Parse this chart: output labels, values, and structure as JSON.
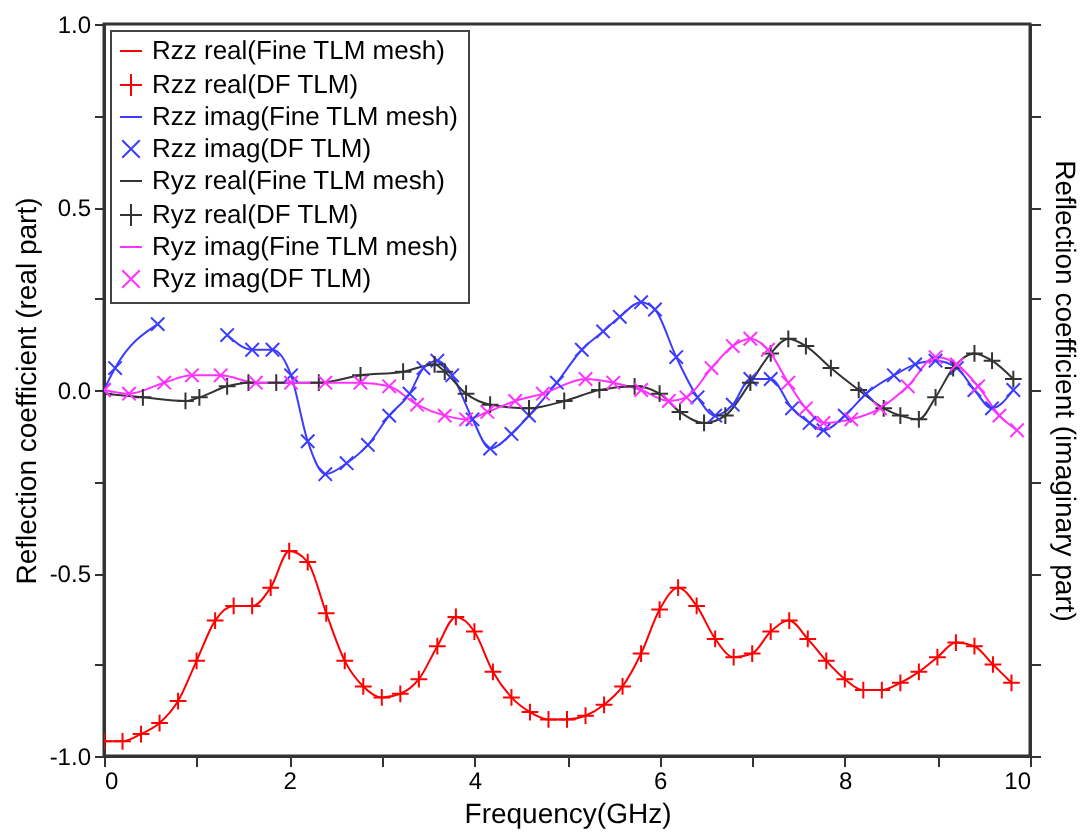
{
  "chart_data": {
    "type": "line",
    "xlabel": "Frequency(GHz)",
    "ylabel": "Reflection coefficient (real part)",
    "y2label": "Reflection coefficient (imaginary part)",
    "xlim": [
      0,
      10
    ],
    "xticks": [
      0,
      {
        "value": 1,
        "label": null
      },
      2,
      {
        "value": 3,
        "label": null
      },
      4,
      {
        "value": 5,
        "label": null
      },
      6,
      {
        "value": 7,
        "label": null
      },
      8,
      {
        "value": 9,
        "label": null
      },
      10
    ],
    "ylim": [
      -1,
      1
    ],
    "yticks": [
      {
        "value": -1,
        "label": "-1.0"
      },
      {
        "value": -0.75,
        "label": null
      },
      {
        "value": -0.5,
        "label": "-0.5"
      },
      {
        "value": -0.25,
        "label": null
      },
      {
        "value": 0,
        "label": "0.0"
      },
      {
        "value": 0.25,
        "label": null
      },
      {
        "value": 0.5,
        "label": "0.5"
      },
      {
        "value": 0.75,
        "label": null
      },
      {
        "value": 1,
        "label": "1.0"
      }
    ],
    "legend": "top left",
    "series": [
      {
        "name": "Rzz real(Fine TLM mesh)",
        "type": "line",
        "marker": "none",
        "color": "#ff0000",
        "x": [
          0,
          0.2,
          0.4,
          0.6,
          0.8,
          1,
          1.2,
          1.4,
          1.6,
          1.8,
          2,
          2.2,
          2.4,
          2.6,
          2.8,
          3,
          3.2,
          3.4,
          3.6,
          3.8,
          4,
          4.2,
          4.4,
          4.6,
          4.8,
          5,
          5.2,
          5.4,
          5.6,
          5.8,
          6,
          6.2,
          6.4,
          6.6,
          6.8,
          7,
          7.2,
          7.4,
          7.6,
          7.8,
          8,
          8.2,
          8.4,
          8.6,
          8.8,
          9,
          9.2,
          9.4,
          9.6,
          9.8
        ],
        "values": [
          -0.96,
          -0.96,
          -0.94,
          -0.91,
          -0.85,
          -0.74,
          -0.63,
          -0.59,
          -0.59,
          -0.54,
          -0.44,
          -0.47,
          -0.61,
          -0.74,
          -0.81,
          -0.84,
          -0.83,
          -0.79,
          -0.7,
          -0.62,
          -0.66,
          -0.77,
          -0.84,
          -0.88,
          -0.9,
          -0.9,
          -0.89,
          -0.86,
          -0.81,
          -0.72,
          -0.6,
          -0.54,
          -0.59,
          -0.68,
          -0.73,
          -0.72,
          -0.66,
          -0.63,
          -0.68,
          -0.74,
          -0.79,
          -0.82,
          -0.82,
          -0.8,
          -0.77,
          -0.73,
          -0.69,
          -0.7,
          -0.75,
          -0.8
        ]
      },
      {
        "name": "Rzz real(DF TLM)",
        "type": "scatter",
        "marker": "cross",
        "color": "#ff0000",
        "x": [
          0,
          0.2,
          0.4,
          0.6,
          0.8,
          1,
          1.2,
          1.4,
          1.6,
          1.8,
          2,
          2.2,
          2.4,
          2.6,
          2.8,
          3,
          3.2,
          3.4,
          3.6,
          3.8,
          4,
          4.2,
          4.4,
          4.6,
          4.8,
          5,
          5.2,
          5.4,
          5.6,
          5.8,
          6,
          6.2,
          6.4,
          6.6,
          6.8,
          7,
          7.2,
          7.4,
          7.6,
          7.8,
          8,
          8.2,
          8.4,
          8.6,
          8.8,
          9,
          9.2,
          9.4,
          9.6,
          9.8
        ],
        "values": [
          -0.96,
          -0.96,
          -0.94,
          -0.91,
          -0.85,
          -0.74,
          -0.63,
          -0.59,
          -0.59,
          -0.54,
          -0.44,
          -0.47,
          -0.61,
          -0.74,
          -0.81,
          -0.84,
          -0.83,
          -0.79,
          -0.7,
          -0.62,
          -0.66,
          -0.77,
          -0.84,
          -0.88,
          -0.9,
          -0.9,
          -0.89,
          -0.86,
          -0.81,
          -0.72,
          -0.6,
          -0.54,
          -0.59,
          -0.68,
          -0.73,
          -0.72,
          -0.66,
          -0.63,
          -0.68,
          -0.74,
          -0.79,
          -0.82,
          -0.82,
          -0.8,
          -0.77,
          -0.73,
          -0.69,
          -0.7,
          -0.75,
          -0.8
        ]
      },
      {
        "name": "Rzz imag(Fine TLM mesh)",
        "type": "line",
        "marker": "none",
        "color": "#3c3cff",
        "x": [
          0,
          0.12,
          0.58,
          0.9,
          1.33,
          1.6,
          1.82,
          2.02,
          2.2,
          2.39,
          2.62,
          2.85,
          3.08,
          3.3,
          3.45,
          3.6,
          3.76,
          3.98,
          4.17,
          4.4,
          4.59,
          4.89,
          5.16,
          5.39,
          5.57,
          5.8,
          5.95,
          6.18,
          6.41,
          6.6,
          6.79,
          6.98,
          7.2,
          7.43,
          7.62,
          7.77,
          8,
          8.23,
          8.53,
          8.76,
          8.98,
          9.21,
          9.4,
          9.59,
          9.82
        ],
        "values": [
          0,
          0.06,
          0.18,
          null,
          0.15,
          0.11,
          0.11,
          0.04,
          -0.14,
          -0.23,
          -0.2,
          -0.15,
          -0.07,
          -0.01,
          0.06,
          0.08,
          0.04,
          -0.08,
          -0.16,
          -0.12,
          -0.07,
          0.02,
          0.11,
          0.16,
          0.2,
          0.24,
          0.22,
          0.09,
          -0.02,
          -0.07,
          -0.04,
          0.03,
          0.03,
          -0.05,
          -0.09,
          -0.11,
          -0.07,
          -0.01,
          0.04,
          0.07,
          0.08,
          0.06,
          0,
          -0.05,
          0
        ]
      },
      {
        "name": "Rzz imag(DF TLM)",
        "type": "scatter",
        "marker": "x",
        "color": "#3c3cff",
        "x": [
          0,
          0.12,
          0.58,
          0.9,
          1.33,
          1.6,
          1.82,
          2.02,
          2.2,
          2.39,
          2.62,
          2.85,
          3.08,
          3.3,
          3.45,
          3.6,
          3.76,
          3.98,
          4.17,
          4.4,
          4.59,
          4.89,
          5.16,
          5.39,
          5.57,
          5.8,
          5.95,
          6.18,
          6.41,
          6.6,
          6.79,
          6.98,
          7.2,
          7.43,
          7.62,
          7.77,
          8,
          8.23,
          8.53,
          8.76,
          8.98,
          9.21,
          9.4,
          9.59,
          9.82
        ],
        "values": [
          0,
          0.06,
          0.18,
          null,
          0.15,
          0.11,
          0.11,
          0.04,
          -0.14,
          -0.23,
          -0.2,
          -0.15,
          -0.07,
          -0.01,
          0.06,
          0.08,
          0.04,
          -0.08,
          -0.16,
          -0.12,
          -0.07,
          0.02,
          0.11,
          0.16,
          0.2,
          0.24,
          0.22,
          0.09,
          -0.02,
          -0.07,
          -0.04,
          0.03,
          0.03,
          -0.05,
          -0.09,
          -0.11,
          -0.07,
          -0.01,
          0.04,
          0.07,
          0.08,
          0.06,
          0,
          -0.05,
          0
        ]
      },
      {
        "name": "Ryz real(Fine TLM mesh)",
        "type": "line",
        "marker": "none",
        "color": "#333333",
        "x": [
          0,
          0.42,
          0.88,
          1.03,
          1.33,
          1.56,
          1.86,
          2.32,
          2.77,
          3.23,
          3.57,
          3.68,
          3.91,
          4.17,
          4.59,
          4.97,
          5.35,
          5.73,
          6,
          6.22,
          6.48,
          6.71,
          6.98,
          7.2,
          7.39,
          7.58,
          7.85,
          8.15,
          8.42,
          8.6,
          8.8,
          8.98,
          9.17,
          9.4,
          9.59,
          9.82
        ],
        "values": [
          -0.01,
          -0.02,
          -0.03,
          -0.02,
          0.01,
          0.02,
          0.02,
          0.02,
          0.04,
          0.05,
          0.07,
          0.05,
          -0.01,
          -0.04,
          -0.05,
          -0.03,
          0,
          0.01,
          -0.01,
          -0.06,
          -0.09,
          -0.07,
          0.02,
          0.1,
          0.14,
          0.12,
          0.06,
          0,
          -0.05,
          -0.07,
          -0.08,
          -0.02,
          0.06,
          0.1,
          0.08,
          0.03
        ]
      },
      {
        "name": "Ryz real(DF TLM)",
        "type": "scatter",
        "marker": "cross",
        "color": "#333333",
        "x": [
          0,
          0.42,
          0.88,
          1.03,
          1.33,
          1.56,
          1.86,
          2.32,
          2.77,
          3.23,
          3.57,
          3.68,
          3.91,
          4.17,
          4.59,
          4.97,
          5.35,
          5.73,
          6,
          6.22,
          6.48,
          6.71,
          6.98,
          7.2,
          7.39,
          7.58,
          7.85,
          8.15,
          8.42,
          8.6,
          8.8,
          8.98,
          9.17,
          9.4,
          9.59,
          9.82
        ],
        "values": [
          -0.01,
          -0.02,
          -0.03,
          -0.02,
          0.01,
          0.02,
          0.02,
          0.02,
          0.04,
          0.05,
          0.07,
          0.05,
          -0.01,
          -0.04,
          -0.05,
          -0.03,
          0,
          0.01,
          -0.01,
          -0.06,
          -0.09,
          -0.07,
          0.02,
          0.1,
          0.14,
          0.12,
          0.06,
          0,
          -0.05,
          -0.07,
          -0.08,
          -0.02,
          0.06,
          0.1,
          0.08,
          0.03
        ]
      },
      {
        "name": "Ryz imag(Fine TLM mesh)",
        "type": "line",
        "marker": "none",
        "color": "#ff33ff",
        "x": [
          0,
          0.27,
          0.65,
          0.95,
          1.26,
          1.64,
          2.02,
          2.39,
          2.77,
          3.08,
          3.38,
          3.68,
          3.91,
          4.14,
          4.44,
          4.74,
          5.2,
          5.5,
          5.8,
          6.1,
          6.29,
          6.56,
          6.79,
          6.98,
          7.17,
          7.39,
          7.58,
          7.77,
          8.07,
          8.38,
          8.68,
          8.98,
          9.21,
          9.44,
          9.67,
          9.86
        ],
        "values": [
          0,
          -0.01,
          0.02,
          0.04,
          0.04,
          0.02,
          0.02,
          0.02,
          0.02,
          0.01,
          -0.04,
          -0.07,
          -0.08,
          -0.06,
          -0.03,
          -0.01,
          0.03,
          0.02,
          0,
          -0.03,
          -0.02,
          0.06,
          0.12,
          0.14,
          0.11,
          0.02,
          -0.05,
          -0.09,
          -0.08,
          -0.05,
          0.01,
          0.09,
          0.07,
          0.01,
          -0.07,
          -0.11
        ]
      },
      {
        "name": "Ryz imag(DF TLM)",
        "type": "scatter",
        "marker": "x",
        "color": "#ff33ff",
        "x": [
          0,
          0.27,
          0.65,
          0.95,
          1.26,
          1.64,
          2.02,
          2.39,
          2.77,
          3.08,
          3.38,
          3.68,
          3.91,
          4.14,
          4.44,
          4.74,
          5.2,
          5.5,
          5.8,
          6.1,
          6.29,
          6.56,
          6.79,
          6.98,
          7.17,
          7.39,
          7.58,
          7.77,
          8.07,
          8.38,
          8.68,
          8.98,
          9.21,
          9.44,
          9.67,
          9.86
        ],
        "values": [
          0,
          -0.01,
          0.02,
          0.04,
          0.04,
          0.02,
          0.02,
          0.02,
          0.02,
          0.01,
          -0.04,
          -0.07,
          -0.08,
          -0.06,
          -0.03,
          -0.01,
          0.03,
          0.02,
          0,
          -0.03,
          -0.02,
          0.06,
          0.12,
          0.14,
          0.11,
          0.02,
          -0.05,
          -0.09,
          -0.08,
          -0.05,
          0.01,
          0.09,
          0.07,
          0.01,
          -0.07,
          -0.11
        ]
      }
    ]
  }
}
